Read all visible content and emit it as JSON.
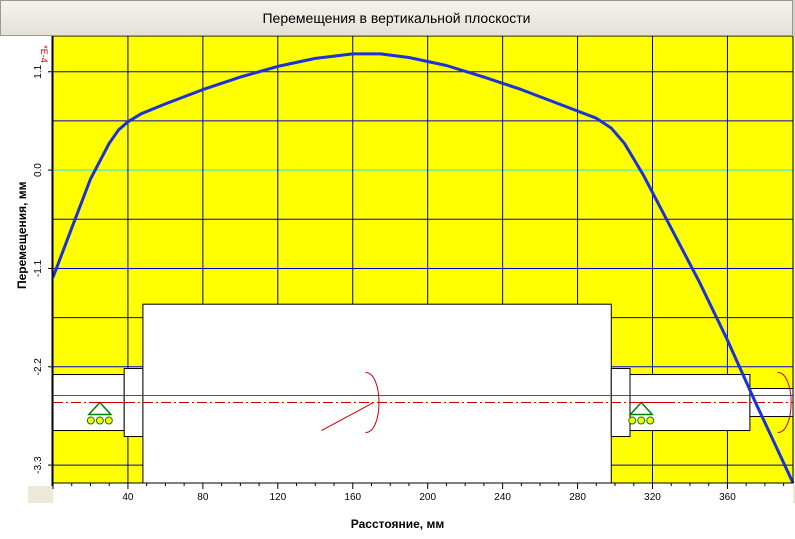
{
  "window": {
    "title": "Перемещения в вертикальной плоскости"
  },
  "colors": {
    "background": "#ffff00",
    "grid": "#0000c8",
    "curve": "#1a32d8",
    "zero_line": "#40e0c8",
    "axis_line": "#cc0000"
  },
  "chart_data": {
    "type": "line",
    "title": "Перемещения в вертикальной плоскости",
    "xlabel": "Расстояние, мм",
    "ylabel": "Перемещения, мм",
    "y_multiplier": "*E-4",
    "xlim": [
      0,
      395
    ],
    "ylim": [
      -3.5,
      1.5
    ],
    "x_ticks": [
      "40",
      "80",
      "120",
      "160",
      "200",
      "240",
      "280",
      "320",
      "360"
    ],
    "y_ticks": [
      "1.1",
      "0.0",
      "-1.1",
      "-2.2",
      "-3.3"
    ],
    "grid": true,
    "series": [
      {
        "x": [
          0,
          10,
          20,
          30,
          35,
          40,
          47,
          60,
          80,
          100,
          120,
          140,
          160,
          175,
          190,
          210,
          230,
          250,
          270,
          290,
          298,
          305,
          315,
          330,
          345,
          360,
          375,
          385,
          395
        ],
        "values": [
          -1.2,
          -0.65,
          -0.1,
          0.3,
          0.45,
          0.54,
          0.63,
          0.74,
          0.9,
          1.04,
          1.16,
          1.25,
          1.3,
          1.3,
          1.26,
          1.17,
          1.04,
          0.9,
          0.74,
          0.58,
          0.47,
          0.3,
          -0.05,
          -0.65,
          -1.25,
          -1.9,
          -2.6,
          -3.05,
          -3.5
        ]
      }
    ]
  },
  "shaft": {
    "sections": [
      {
        "x_start": 0,
        "x_end": 38
      },
      {
        "x_start": 38,
        "x_end": 48
      },
      {
        "x_start": 48,
        "x_end": 298
      },
      {
        "x_start": 298,
        "x_end": 308
      },
      {
        "x_start": 308,
        "x_end": 372
      },
      {
        "x_start": 372,
        "x_end": 395
      }
    ],
    "bearings_x": [
      25,
      314
    ],
    "moment_symbols_x": [
      170,
      390
    ]
  }
}
